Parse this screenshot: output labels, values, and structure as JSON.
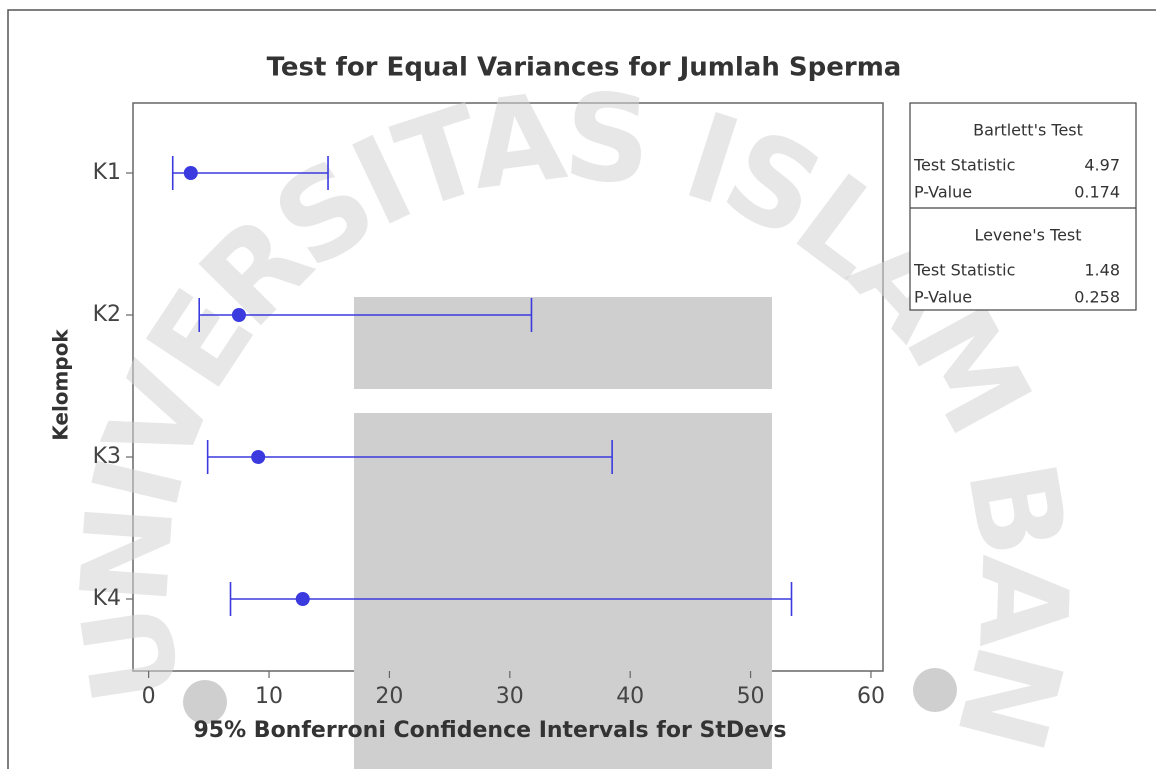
{
  "chart_data": {
    "type": "interval",
    "title": "Test for Equal Variances for Jumlah Sperma",
    "xlabel": "95% Bonferroni Confidence Intervals for StDevs",
    "ylabel": "Kelompok",
    "categories": [
      "K1",
      "K2",
      "K3",
      "K4"
    ],
    "values": [
      3.5,
      7.5,
      9.1,
      12.8
    ],
    "lower": [
      2.0,
      4.2,
      4.9,
      6.8
    ],
    "upper": [
      14.9,
      31.8,
      38.5,
      53.4
    ],
    "color": "#3a3adf",
    "xlim": [
      -1.3,
      61
    ],
    "xticks": [
      0,
      10,
      20,
      30,
      40,
      50,
      60
    ],
    "tests": [
      {
        "name": "Bartlett's Test",
        "labels": [
          "Test Statistic",
          "P-Value"
        ],
        "values": [
          4.97,
          0.174
        ]
      },
      {
        "name": "Levene's Test",
        "labels": [
          "Test Statistic",
          "P-Value"
        ],
        "values": [
          1.48,
          0.258
        ]
      }
    ]
  },
  "watermark": "UNIVERSITAS ISLAM BANDUNG"
}
